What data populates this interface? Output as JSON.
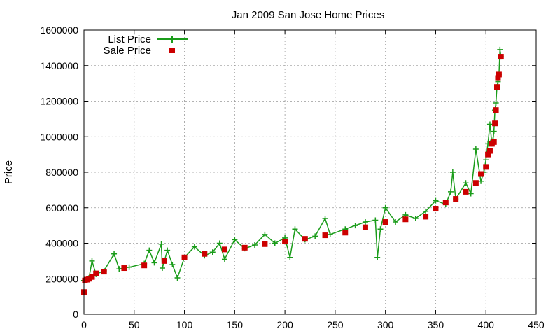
{
  "chart_data": {
    "type": "line",
    "title": "Jan 2009 San Jose Home Prices",
    "xlabel": "",
    "ylabel": "Price",
    "xlim": [
      0,
      450
    ],
    "ylim": [
      0,
      1600000
    ],
    "x_ticks": [
      "0",
      "50",
      "100",
      "150",
      "200",
      "250",
      "300",
      "350",
      "400",
      "450"
    ],
    "y_ticks": [
      "0",
      "200000",
      "400000",
      "600000",
      "800000",
      "1000000",
      "1200000",
      "1400000",
      "1600000"
    ],
    "grid": true,
    "legend_position": "top-left",
    "series": [
      {
        "name": "List Price",
        "style": "line+plus",
        "color": "#1a9c1a",
        "points": [
          [
            0,
            190000
          ],
          [
            5,
            205000
          ],
          [
            8,
            300000
          ],
          [
            12,
            225000
          ],
          [
            20,
            245000
          ],
          [
            30,
            340000
          ],
          [
            35,
            255000
          ],
          [
            45,
            265000
          ],
          [
            60,
            285000
          ],
          [
            65,
            360000
          ],
          [
            70,
            290000
          ],
          [
            77,
            395000
          ],
          [
            78,
            260000
          ],
          [
            83,
            360000
          ],
          [
            88,
            280000
          ],
          [
            93,
            205000
          ],
          [
            100,
            320000
          ],
          [
            110,
            380000
          ],
          [
            120,
            330000
          ],
          [
            128,
            350000
          ],
          [
            135,
            400000
          ],
          [
            140,
            310000
          ],
          [
            150,
            420000
          ],
          [
            160,
            370000
          ],
          [
            170,
            390000
          ],
          [
            180,
            450000
          ],
          [
            190,
            400000
          ],
          [
            200,
            430000
          ],
          [
            205,
            320000
          ],
          [
            210,
            480000
          ],
          [
            220,
            420000
          ],
          [
            230,
            440000
          ],
          [
            240,
            540000
          ],
          [
            245,
            450000
          ],
          [
            260,
            480000
          ],
          [
            270,
            500000
          ],
          [
            280,
            520000
          ],
          [
            290,
            530000
          ],
          [
            292,
            320000
          ],
          [
            295,
            480000
          ],
          [
            300,
            600000
          ],
          [
            310,
            520000
          ],
          [
            320,
            560000
          ],
          [
            330,
            540000
          ],
          [
            340,
            580000
          ],
          [
            350,
            640000
          ],
          [
            360,
            620000
          ],
          [
            365,
            690000
          ],
          [
            367,
            800000
          ],
          [
            370,
            650000
          ],
          [
            380,
            740000
          ],
          [
            385,
            680000
          ],
          [
            390,
            930000
          ],
          [
            395,
            750000
          ],
          [
            398,
            800000
          ],
          [
            400,
            870000
          ],
          [
            402,
            960000
          ],
          [
            404,
            1070000
          ],
          [
            406,
            960000
          ],
          [
            407,
            980000
          ],
          [
            408,
            1030000
          ],
          [
            409,
            1150000
          ],
          [
            410,
            1190000
          ],
          [
            411,
            1280000
          ],
          [
            412,
            1310000
          ],
          [
            413,
            1350000
          ],
          [
            414,
            1490000
          ],
          [
            415,
            1450000
          ]
        ]
      },
      {
        "name": "Sale Price",
        "style": "square",
        "color": "#cc0000",
        "points": [
          [
            0,
            125000
          ],
          [
            1,
            190000
          ],
          [
            3,
            195000
          ],
          [
            5,
            200000
          ],
          [
            8,
            210000
          ],
          [
            12,
            230000
          ],
          [
            20,
            240000
          ],
          [
            40,
            260000
          ],
          [
            60,
            275000
          ],
          [
            80,
            300000
          ],
          [
            100,
            320000
          ],
          [
            120,
            340000
          ],
          [
            140,
            365000
          ],
          [
            160,
            375000
          ],
          [
            180,
            395000
          ],
          [
            200,
            410000
          ],
          [
            220,
            425000
          ],
          [
            240,
            445000
          ],
          [
            260,
            460000
          ],
          [
            280,
            490000
          ],
          [
            300,
            520000
          ],
          [
            320,
            535000
          ],
          [
            340,
            550000
          ],
          [
            350,
            595000
          ],
          [
            360,
            630000
          ],
          [
            370,
            650000
          ],
          [
            380,
            690000
          ],
          [
            390,
            740000
          ],
          [
            395,
            790000
          ],
          [
            400,
            830000
          ],
          [
            402,
            900000
          ],
          [
            404,
            920000
          ],
          [
            406,
            960000
          ],
          [
            408,
            970000
          ],
          [
            409,
            1075000
          ],
          [
            410,
            1150000
          ],
          [
            411,
            1280000
          ],
          [
            412,
            1330000
          ],
          [
            413,
            1350000
          ],
          [
            415,
            1450000
          ]
        ]
      }
    ]
  }
}
